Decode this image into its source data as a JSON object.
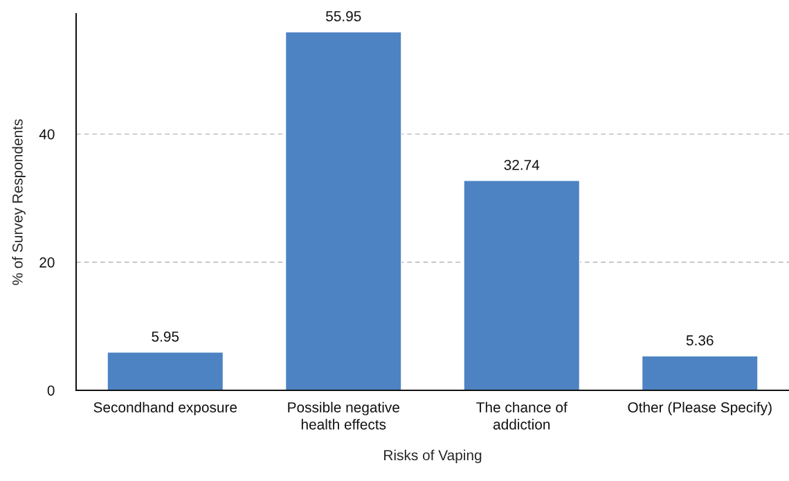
{
  "chart_data": {
    "type": "bar",
    "xlabel": "Risks of Vaping",
    "ylabel": "% of Survey Respondents",
    "categories": [
      "Secondhand exposure",
      "Possible negative\nhealth effects",
      "The chance of\naddiction",
      "Other (Please Specify)"
    ],
    "values": [
      5.95,
      55.95,
      32.74,
      5.36
    ],
    "color": "#4d83c3",
    "ylim": [
      0,
      58.75
    ],
    "yticks": [
      0,
      20,
      40
    ],
    "grid": "y",
    "line_style": "dashed",
    "data_labels": true
  }
}
